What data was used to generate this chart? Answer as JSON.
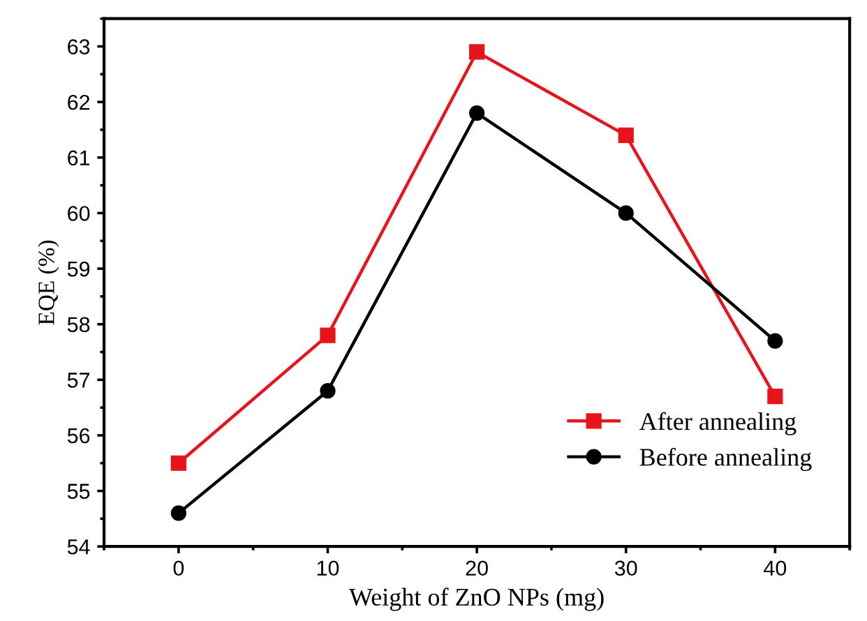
{
  "chart_data": {
    "type": "line",
    "xlabel": "Weight of ZnO NPs (mg)",
    "ylabel": "EQE (%)",
    "x": [
      0,
      10,
      20,
      30,
      40
    ],
    "series": [
      {
        "name": "After annealing",
        "color": "#e8141b",
        "marker": "square",
        "values": [
          55.5,
          57.8,
          62.9,
          61.4,
          56.7
        ]
      },
      {
        "name": "Before annealing",
        "color": "#000000",
        "marker": "circle",
        "values": [
          54.6,
          56.8,
          61.8,
          60.0,
          57.7
        ]
      }
    ],
    "xlim": [
      -5,
      45
    ],
    "ylim": [
      54,
      63.5
    ],
    "xticks": [
      0,
      10,
      20,
      30,
      40
    ],
    "yticks": [
      54,
      55,
      56,
      57,
      58,
      59,
      60,
      61,
      62,
      63
    ],
    "grid": false,
    "legend": "bottom right",
    "line_style": "solid"
  }
}
